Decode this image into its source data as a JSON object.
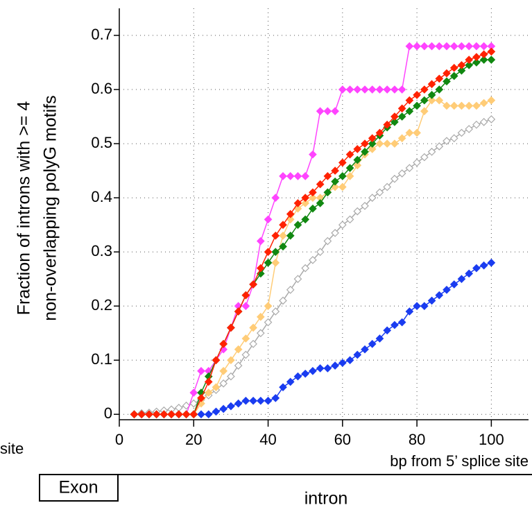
{
  "chart_data": {
    "type": "line",
    "y_label_lines": [
      "Fraction of introns with >= 4",
      "non-overlapping polyG motifs"
    ],
    "x_label": "bp from 5’ splice site",
    "side_text": "site",
    "exon_label": "Exon",
    "intron_label": "intron",
    "xlim": [
      0,
      110
    ],
    "ylim": [
      -0.01,
      0.75
    ],
    "xticks": [
      0,
      20,
      40,
      60,
      80,
      100
    ],
    "yticks": [
      0,
      0.1,
      0.2,
      0.3,
      0.4,
      0.5,
      0.6,
      0.7
    ],
    "grid": true,
    "x": [
      4,
      6,
      8,
      10,
      12,
      14,
      16,
      18,
      20,
      22,
      24,
      26,
      28,
      30,
      32,
      34,
      36,
      38,
      40,
      42,
      44,
      46,
      48,
      50,
      52,
      54,
      56,
      58,
      60,
      62,
      64,
      66,
      68,
      70,
      72,
      74,
      76,
      78,
      80,
      82,
      84,
      86,
      88,
      90,
      92,
      94,
      96,
      98,
      100
    ],
    "series": [
      {
        "color": "#aaaaaa",
        "marker": "hollow",
        "values": [
          0,
          0.002,
          0.003,
          0.005,
          0.007,
          0.009,
          0.012,
          0.016,
          0.02,
          0.027,
          0.035,
          0.045,
          0.057,
          0.07,
          0.09,
          0.11,
          0.13,
          0.15,
          0.17,
          0.19,
          0.21,
          0.23,
          0.25,
          0.27,
          0.285,
          0.3,
          0.32,
          0.335,
          0.35,
          0.36,
          0.375,
          0.385,
          0.4,
          0.41,
          0.42,
          0.435,
          0.445,
          0.455,
          0.465,
          0.475,
          0.485,
          0.495,
          0.505,
          0.51,
          0.52,
          0.527,
          0.535,
          0.54,
          0.545
        ]
      },
      {
        "color": "#1a3cf0",
        "marker": "filled",
        "values": [
          0,
          0,
          0,
          0,
          0,
          0,
          0,
          0,
          0,
          0,
          0,
          0.005,
          0.01,
          0.015,
          0.02,
          0.025,
          0.025,
          0.025,
          0.025,
          0.03,
          0.05,
          0.06,
          0.07,
          0.075,
          0.08,
          0.085,
          0.085,
          0.09,
          0.095,
          0.1,
          0.11,
          0.12,
          0.13,
          0.14,
          0.155,
          0.165,
          0.17,
          0.19,
          0.2,
          0.2,
          0.21,
          0.22,
          0.23,
          0.24,
          0.25,
          0.26,
          0.27,
          0.275,
          0.28
        ]
      },
      {
        "color": "#ff44ff",
        "marker": "filled",
        "values": [
          0,
          0,
          0,
          0,
          0,
          0,
          0,
          0,
          0.04,
          0.08,
          0.08,
          0.1,
          0.12,
          0.16,
          0.2,
          0.2,
          0.24,
          0.32,
          0.36,
          0.4,
          0.44,
          0.44,
          0.44,
          0.44,
          0.48,
          0.56,
          0.56,
          0.56,
          0.6,
          0.6,
          0.6,
          0.6,
          0.6,
          0.6,
          0.6,
          0.6,
          0.6,
          0.68,
          0.68,
          0.68,
          0.68,
          0.68,
          0.68,
          0.68,
          0.68,
          0.68,
          0.68,
          0.68,
          0.68
        ]
      },
      {
        "color": "#ffcc77",
        "marker": "filled",
        "values": [
          0,
          0,
          0,
          0,
          0,
          0,
          0,
          0,
          0,
          0.02,
          0.04,
          0.05,
          0.08,
          0.1,
          0.12,
          0.14,
          0.16,
          0.18,
          0.2,
          0.28,
          0.33,
          0.36,
          0.38,
          0.39,
          0.4,
          0.4,
          0.41,
          0.42,
          0.42,
          0.44,
          0.46,
          0.48,
          0.49,
          0.5,
          0.5,
          0.5,
          0.51,
          0.52,
          0.52,
          0.56,
          0.58,
          0.58,
          0.57,
          0.57,
          0.57,
          0.57,
          0.57,
          0.575,
          0.58
        ]
      },
      {
        "color": "#118811",
        "marker": "filled",
        "values": [
          0,
          0,
          0,
          0,
          0,
          0,
          0,
          0,
          0,
          0.04,
          0.07,
          0.1,
          0.13,
          0.16,
          0.19,
          0.22,
          0.24,
          0.26,
          0.28,
          0.3,
          0.31,
          0.33,
          0.35,
          0.36,
          0.38,
          0.39,
          0.41,
          0.43,
          0.44,
          0.455,
          0.47,
          0.485,
          0.5,
          0.515,
          0.53,
          0.54,
          0.55,
          0.56,
          0.57,
          0.58,
          0.59,
          0.6,
          0.615,
          0.625,
          0.635,
          0.645,
          0.65,
          0.655,
          0.655
        ]
      },
      {
        "color": "#ff2200",
        "marker": "filled",
        "values": [
          0,
          0,
          0,
          0,
          0,
          0,
          0,
          0,
          0,
          0.03,
          0.06,
          0.1,
          0.13,
          0.16,
          0.19,
          0.22,
          0.24,
          0.27,
          0.3,
          0.33,
          0.35,
          0.37,
          0.39,
          0.4,
          0.41,
          0.425,
          0.44,
          0.45,
          0.465,
          0.48,
          0.49,
          0.5,
          0.51,
          0.52,
          0.535,
          0.55,
          0.565,
          0.58,
          0.59,
          0.6,
          0.61,
          0.62,
          0.63,
          0.64,
          0.645,
          0.655,
          0.66,
          0.665,
          0.67
        ]
      }
    ]
  }
}
